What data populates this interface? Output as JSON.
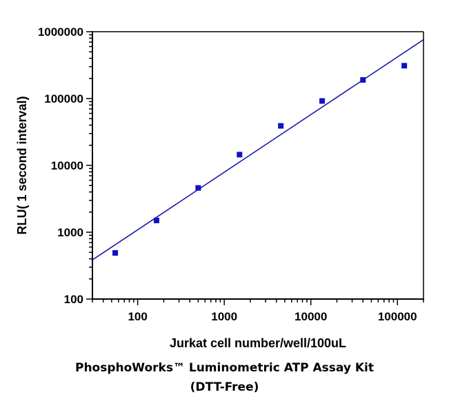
{
  "chart_data": {
    "type": "scatter",
    "xscale": "log",
    "yscale": "log",
    "xlim": [
      30,
      200000
    ],
    "ylim": [
      100,
      1000000
    ],
    "xlabel": "Jurkat cell number/well/100uL",
    "ylabel": "RLU( 1 second interval)",
    "x_ticks": [
      {
        "value": 100,
        "label": "100"
      },
      {
        "value": 1000,
        "label": "1000"
      },
      {
        "value": 10000,
        "label": "10000"
      },
      {
        "value": 100000,
        "label": "100000"
      }
    ],
    "y_ticks": [
      {
        "value": 100,
        "label": "100"
      },
      {
        "value": 1000,
        "label": "1000"
      },
      {
        "value": 10000,
        "label": "10000"
      },
      {
        "value": 100000,
        "label": "100000"
      },
      {
        "value": 1000000,
        "label": "1000000"
      }
    ],
    "points": [
      {
        "x": 55,
        "y": 490
      },
      {
        "x": 165,
        "y": 1500
      },
      {
        "x": 500,
        "y": 4600
      },
      {
        "x": 1500,
        "y": 14500
      },
      {
        "x": 4500,
        "y": 39000
      },
      {
        "x": 13500,
        "y": 92000
      },
      {
        "x": 40000,
        "y": 190000
      },
      {
        "x": 120000,
        "y": 310000
      }
    ],
    "fit_line": {
      "x": [
        30,
        200000
      ],
      "y": [
        385,
        760000
      ]
    },
    "grid": false,
    "colors": {
      "marker": "#1010c8",
      "line": "#1a1aa6",
      "axis": "#000000"
    }
  },
  "caption": {
    "line1": "PhosphoWorks™ Luminometric ATP Assay Kit",
    "line2": "(DTT-Free)"
  }
}
